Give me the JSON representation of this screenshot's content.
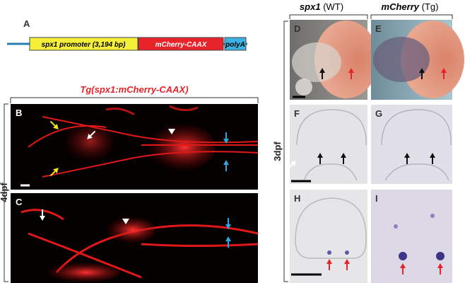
{
  "panel_a": {
    "label": "A",
    "promoter": "spx1 promoter (3,194 bp)",
    "reporter": "mCherry-CAAX",
    "polya": "polyA"
  },
  "transgenic": {
    "title": "Tg(spx1:mCherry-CAAX)",
    "stage": "4dpf",
    "panels": [
      "B",
      "C"
    ]
  },
  "in_situ": {
    "columns": [
      {
        "gene": "spx1",
        "group": "(WT)"
      },
      {
        "gene": "mCherry",
        "group": "(Tg)"
      }
    ],
    "stage": "3dpf",
    "panels": [
      "D",
      "E",
      "F",
      "G",
      "H",
      "I"
    ]
  }
}
